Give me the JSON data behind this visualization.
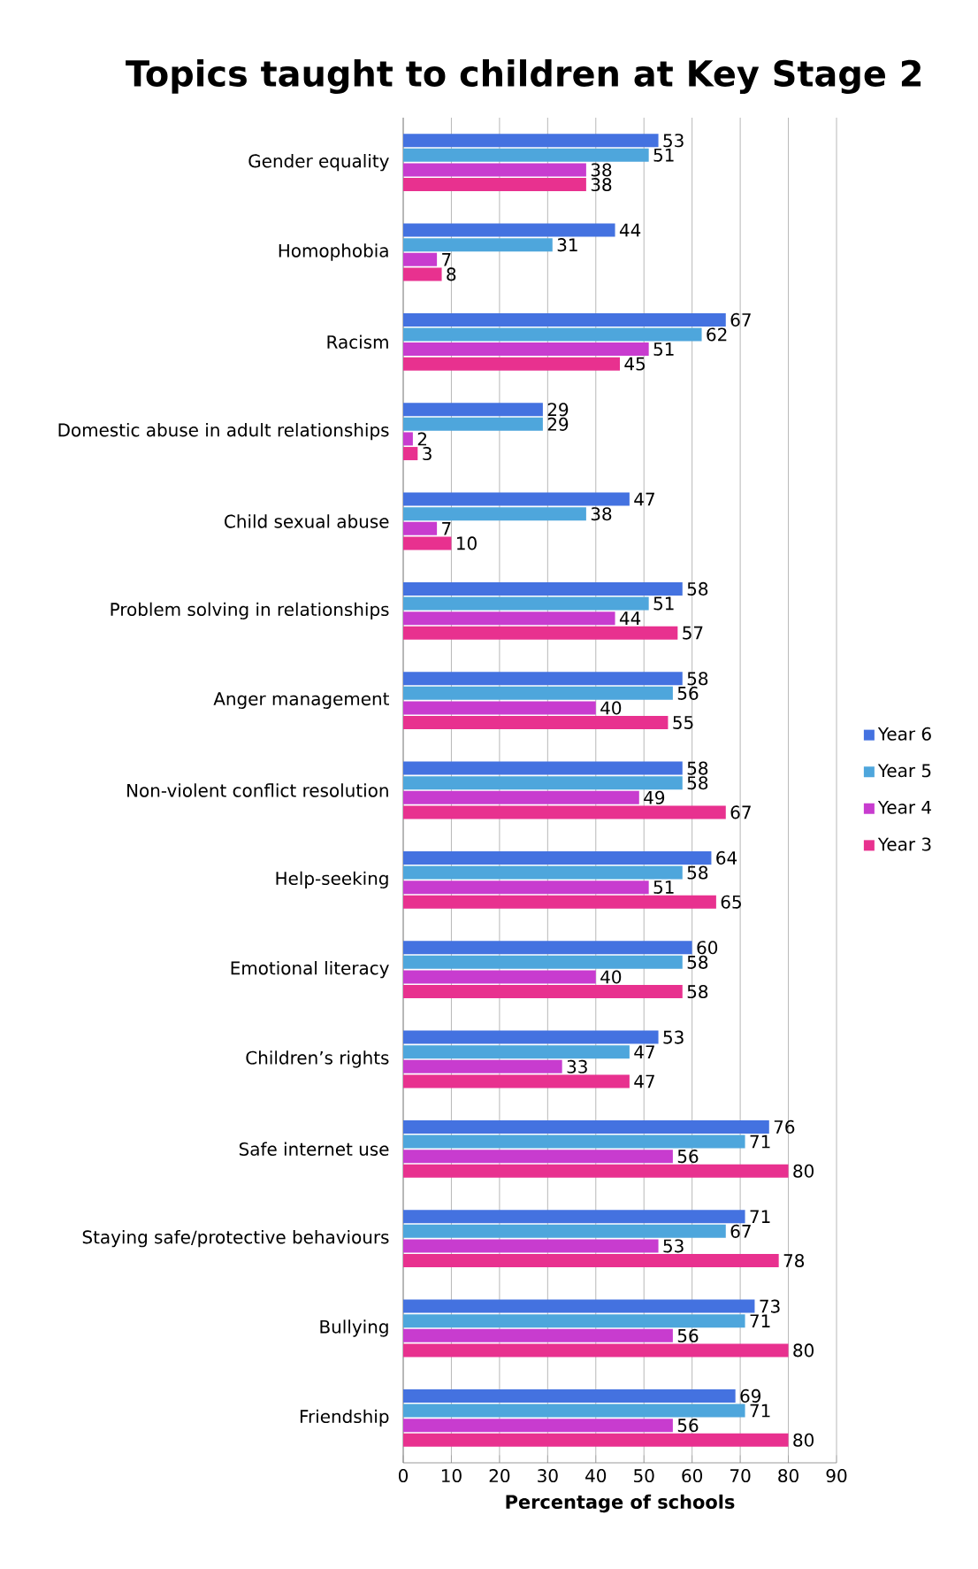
{
  "chart_data": {
    "type": "bar",
    "orientation": "horizontal",
    "title": "Topics taught to children at Key Stage 2",
    "xlabel": "Percentage of schools",
    "categories": [
      "Gender equality",
      "Homophobia",
      "Racism",
      "Domestic abuse in adult relationships",
      "Child sexual abuse",
      "Problem solving in relationships",
      "Anger management",
      "Non-violent conflict resolution",
      "Help-seeking",
      "Emotional literacy",
      "Children’s rights",
      "Safe internet use",
      "Staying safe/protective behaviours",
      "Bullying",
      "Friendship"
    ],
    "series": [
      {
        "name": "Year 6",
        "color": "#4472e0",
        "values": [
          53,
          44,
          67,
          29,
          47,
          58,
          58,
          58,
          64,
          60,
          53,
          76,
          71,
          73,
          69
        ]
      },
      {
        "name": "Year 5",
        "color": "#4ea6dc",
        "values": [
          51,
          31,
          62,
          29,
          38,
          51,
          56,
          58,
          58,
          58,
          47,
          71,
          67,
          71,
          71
        ]
      },
      {
        "name": "Year 4",
        "color": "#c83ccf",
        "values": [
          38,
          7,
          51,
          2,
          7,
          44,
          40,
          49,
          51,
          40,
          33,
          56,
          53,
          56,
          56
        ]
      },
      {
        "name": "Year 3",
        "color": "#e8318f",
        "values": [
          38,
          8,
          45,
          3,
          10,
          57,
          55,
          67,
          65,
          58,
          47,
          80,
          78,
          80,
          80
        ]
      }
    ],
    "xlim": [
      0,
      90
    ],
    "xticks": [
      0,
      10,
      20,
      30,
      40,
      50,
      60,
      70,
      80,
      90
    ],
    "grid": "x",
    "legend": "right",
    "data_labels": true
  }
}
